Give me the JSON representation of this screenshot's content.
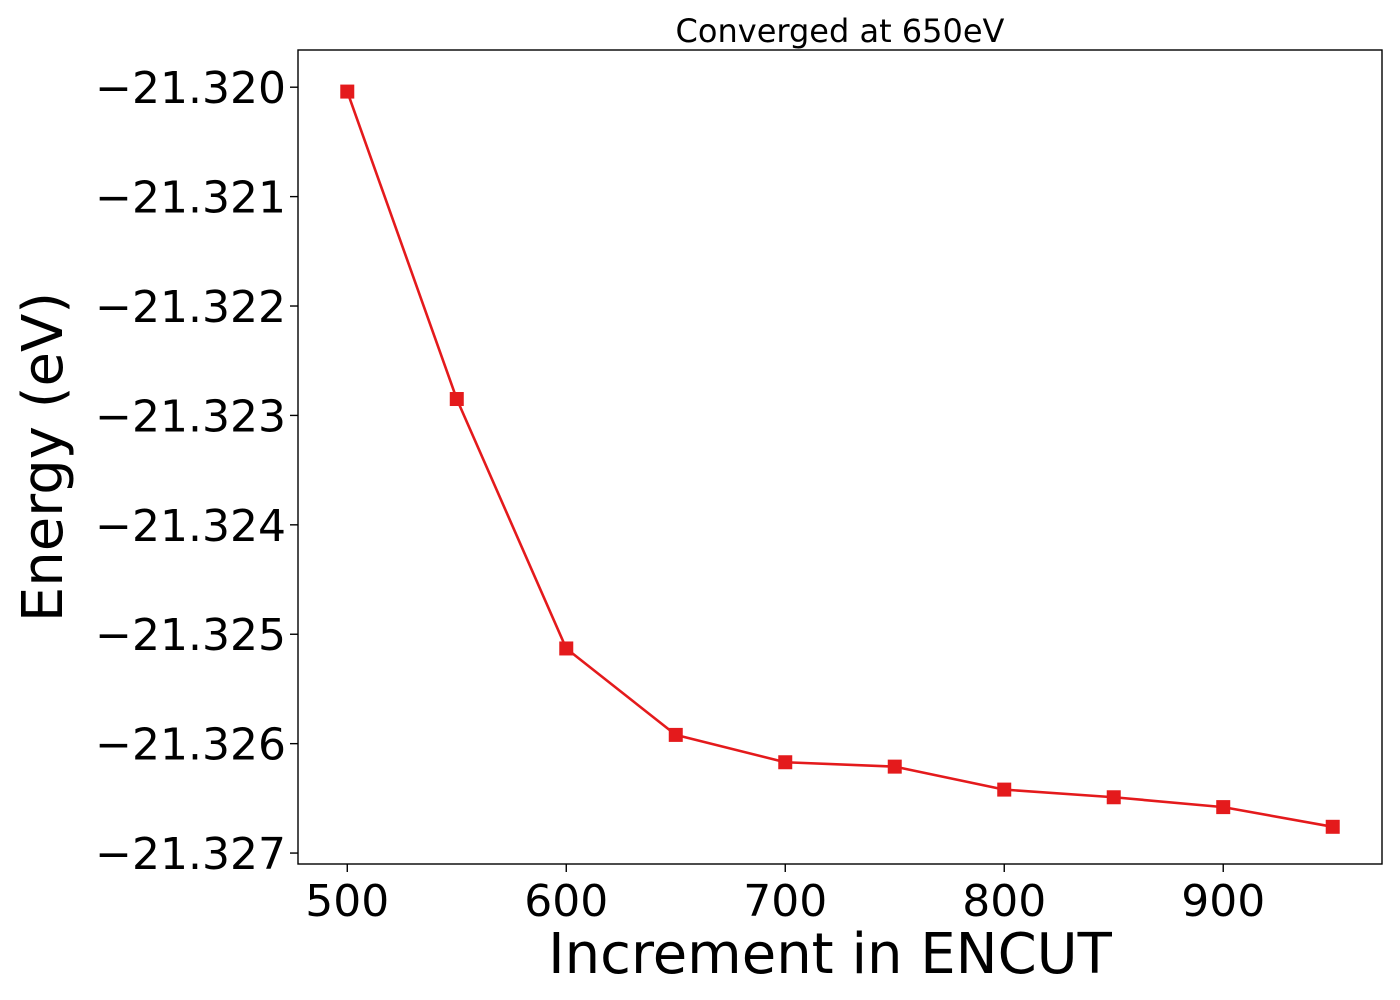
{
  "chart_data": {
    "type": "line",
    "title": "Converged at 650eV",
    "xlabel": "Increment in ENCUT",
    "ylabel": "Energy (eV)",
    "x": [
      500,
      550,
      600,
      650,
      700,
      750,
      800,
      850,
      900,
      950
    ],
    "xticks": [
      500,
      600,
      700,
      800,
      900
    ],
    "xtick_labels": [
      "500",
      "600",
      "700",
      "800",
      "900"
    ],
    "yticks": [
      -21.32,
      -21.321,
      -21.322,
      -21.323,
      -21.324,
      -21.325,
      -21.326,
      -21.327
    ],
    "ytick_labels": [
      "−21.320",
      "−21.321",
      "−21.322",
      "−21.323",
      "−21.324",
      "−21.325",
      "−21.326",
      "−21.327"
    ],
    "xlim": [
      477.5,
      972.5
    ],
    "ylim": [
      -21.3271,
      -21.31966
    ],
    "grid": false,
    "marker": "square",
    "series": [
      {
        "color": "#e41a1c",
        "values": [
          -21.32004,
          -21.32285,
          -21.32513,
          -21.32592,
          -21.32617,
          -21.32621,
          -21.32642,
          -21.32649,
          -21.32658,
          -21.32676
        ]
      }
    ]
  }
}
